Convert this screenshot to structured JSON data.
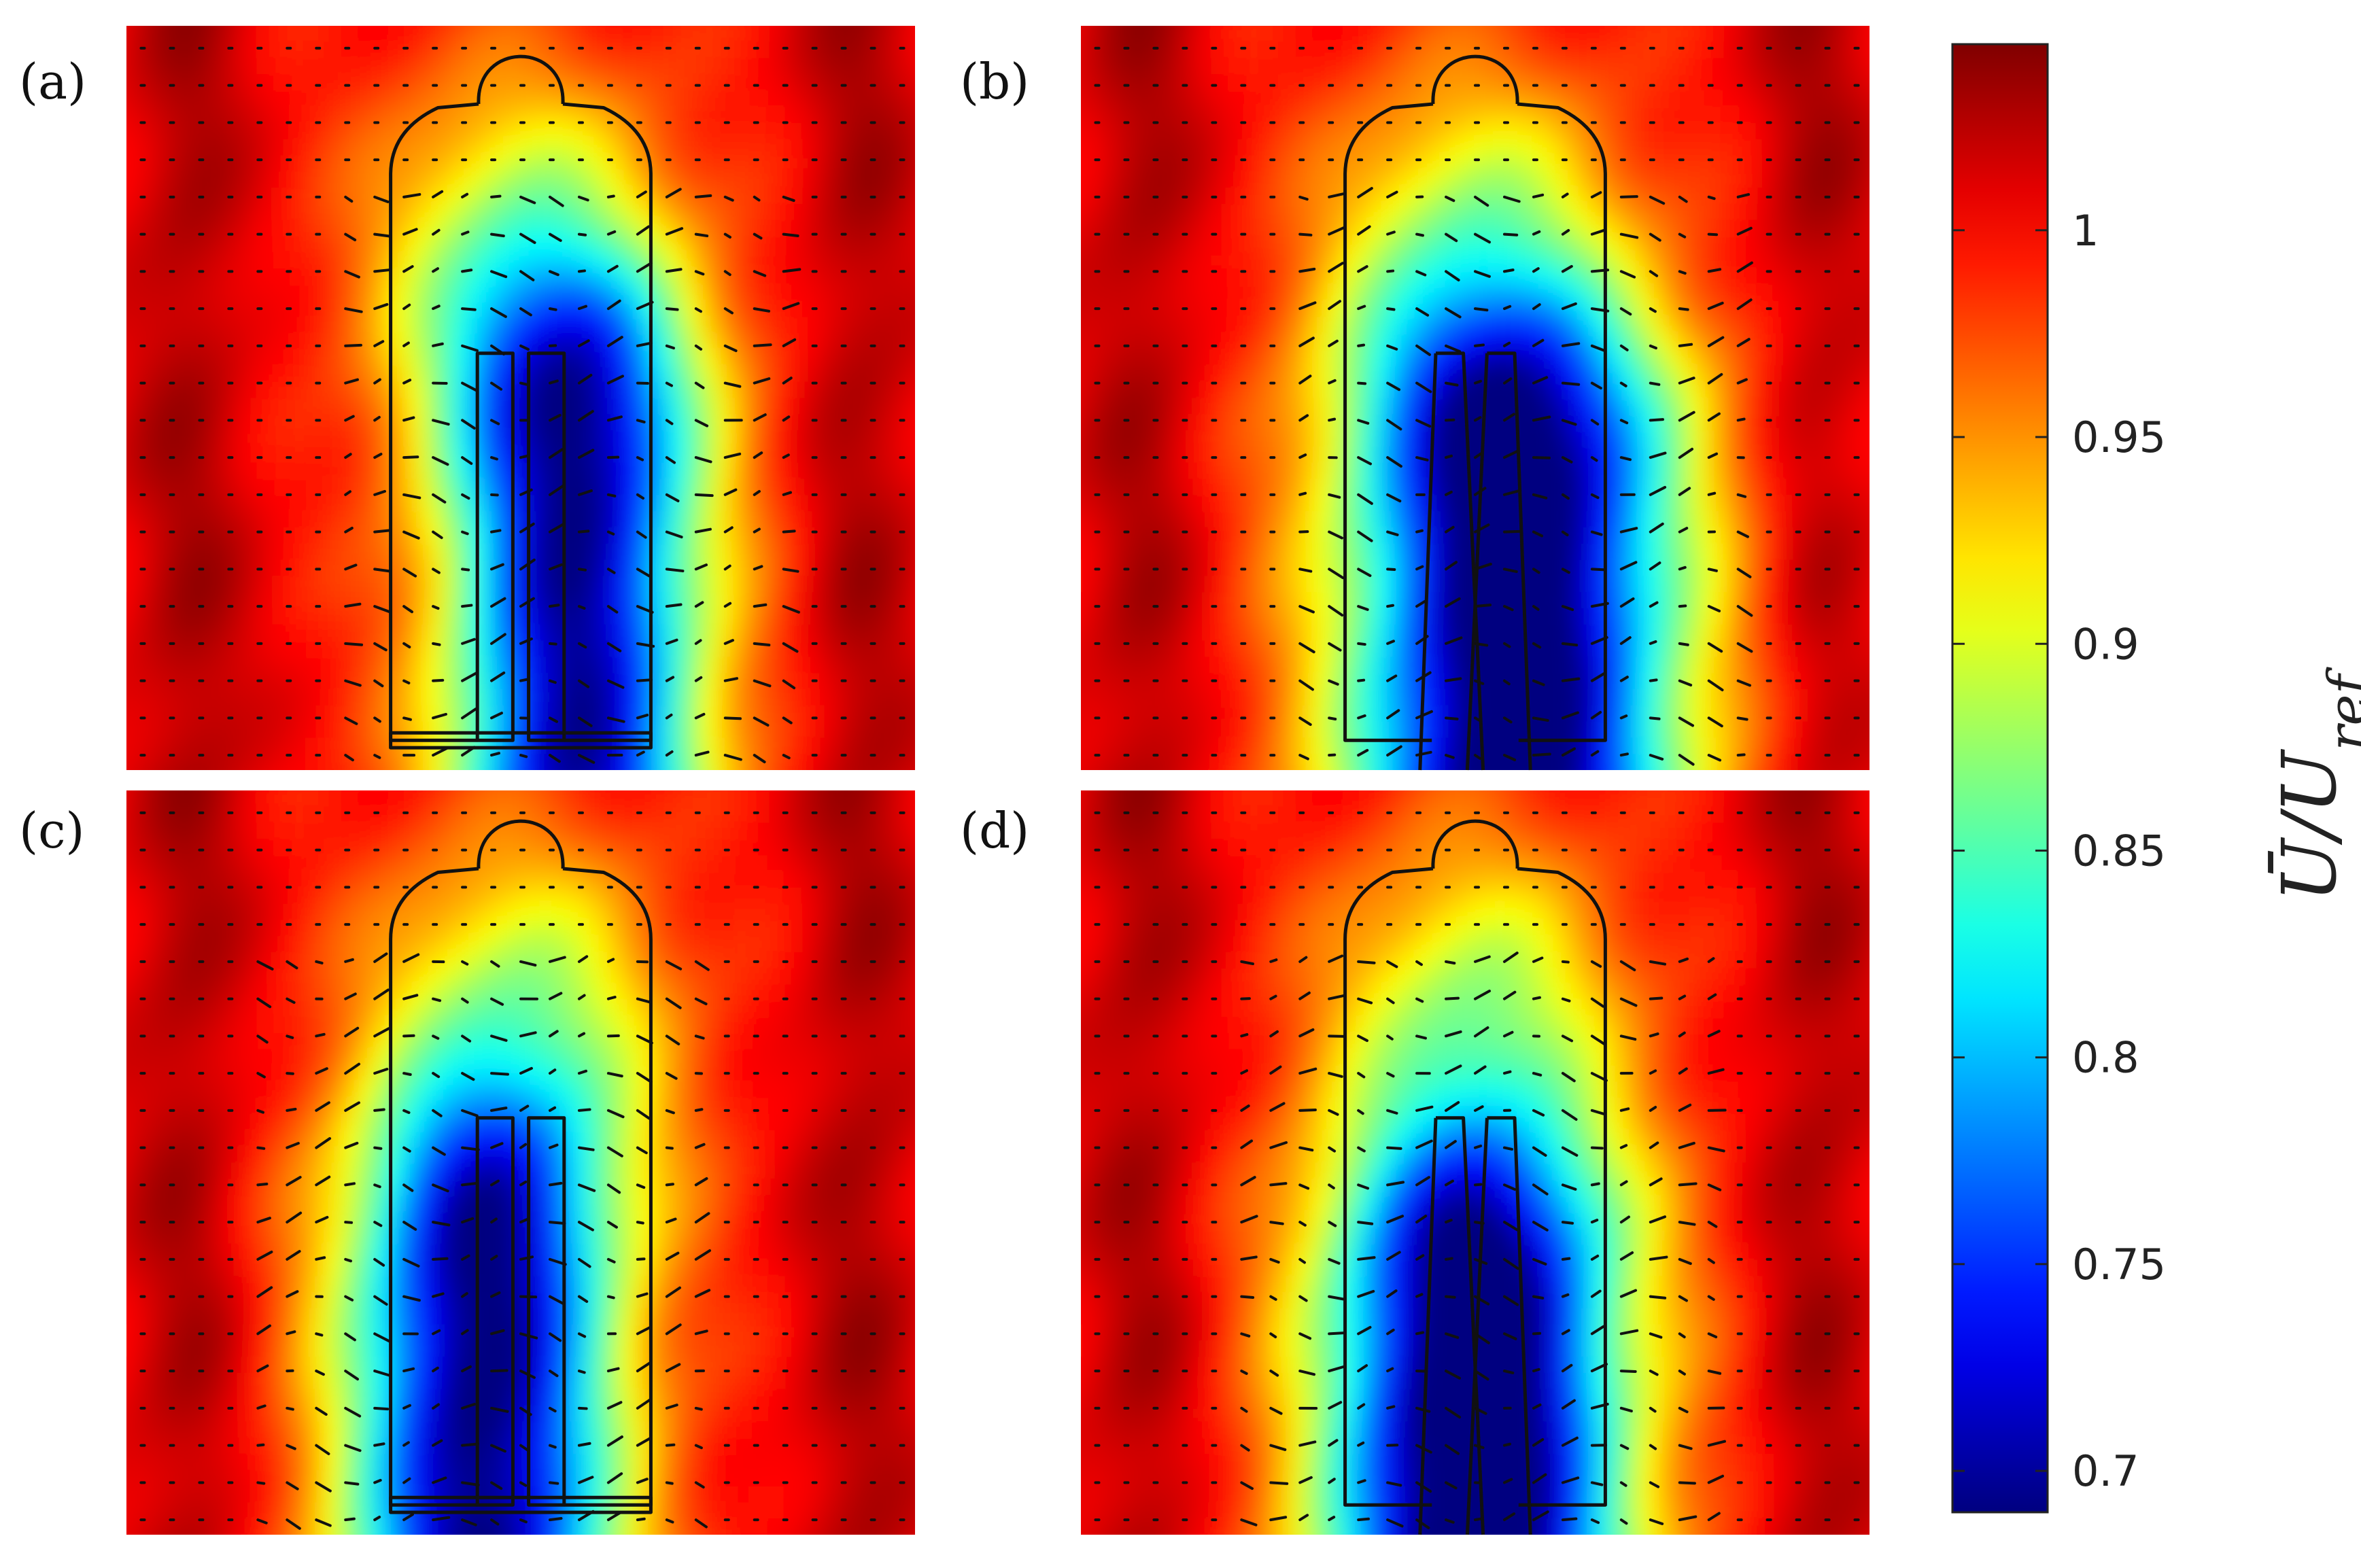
{
  "chart_data": {
    "type": "heatmap",
    "title": "",
    "panels": [
      {
        "label": "(a)",
        "wake_center": 0.57,
        "wake_strength": 1.0,
        "wake_width": 0.17,
        "wake_top": 0.38,
        "legs_crossed": false
      },
      {
        "label": "(b)",
        "wake_center": 0.55,
        "wake_strength": 1.15,
        "wake_width": 0.22,
        "wake_top": 0.42,
        "legs_crossed": true
      },
      {
        "label": "(c)",
        "wake_center": 0.45,
        "wake_strength": 1.05,
        "wake_width": 0.18,
        "wake_top": 0.45,
        "legs_crossed": false
      },
      {
        "label": "(d)",
        "wake_center": 0.5,
        "wake_strength": 1.2,
        "wake_width": 0.2,
        "wake_top": 0.5,
        "legs_crossed": true
      }
    ],
    "colorbar": {
      "label": "Ū/U_ref",
      "label_display": "Ū/U",
      "label_sub": "ref",
      "min": 0.69,
      "max": 1.045,
      "ticks": [
        0.7,
        0.75,
        0.8,
        0.85,
        0.9,
        0.95,
        1
      ],
      "tick_labels": [
        "0.7",
        "0.75",
        "0.8",
        "0.85",
        "0.9",
        "0.95",
        "1"
      ],
      "colormap": "jet"
    }
  }
}
